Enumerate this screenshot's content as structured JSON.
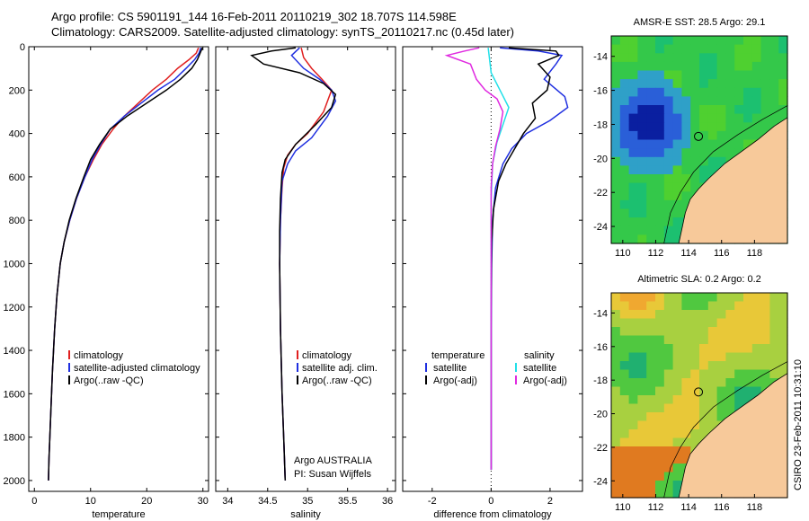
{
  "header": {
    "line1": "Argo profile: CS 5901191_144 16-Feb-2011 20110219_302 18.707S 114.598E",
    "line2": "Climatology: CARS2009. Satellite-adjusted climatology: synTS_20110217.nc (0.45d later)"
  },
  "side_stamp": "CSIRO 23-Feb-2011 10:31:10",
  "credit": {
    "line1": "Argo AUSTRALIA",
    "line2": "PI: Susan Wijffels"
  },
  "maps": {
    "sst_title": "AMSR-E SST: 28.5 Argo: 29.1",
    "sla_title": "Altimetric SLA: 0.2 Argo: 0.2"
  },
  "colors": {
    "climatology": "#e02020",
    "satellite": "#1f2fe0",
    "argo": "#000000",
    "sat_salinity": "#22e0e8",
    "argo_adj_salinity": "#e02ae0",
    "land": "#f7c99a"
  },
  "chart_data": [
    {
      "type": "line",
      "xlabel": "temperature",
      "ylabel": "",
      "xlim": [
        -1,
        31
      ],
      "ylim": [
        2050,
        0
      ],
      "xticks": [
        0,
        10,
        20,
        30
      ],
      "yticks": [
        0,
        200,
        400,
        600,
        800,
        1000,
        1200,
        1400,
        1600,
        1800,
        2000
      ],
      "legend": [
        "climatology",
        "satellite-adjusted climatology",
        "Argo(..raw -QC)"
      ],
      "series": [
        {
          "name": "climatology",
          "color": "#e02020",
          "points": [
            [
              29.2,
              5
            ],
            [
              28.8,
              30
            ],
            [
              27.5,
              60
            ],
            [
              25.5,
              100
            ],
            [
              23.5,
              150
            ],
            [
              21,
              200
            ],
            [
              18.5,
              260
            ],
            [
              16,
              320
            ],
            [
              14,
              380
            ],
            [
              12,
              450
            ],
            [
              10.5,
              520
            ],
            [
              9,
              600
            ],
            [
              7.5,
              700
            ],
            [
              6.3,
              800
            ],
            [
              5.3,
              900
            ],
            [
              4.6,
              1000
            ],
            [
              4,
              1150
            ],
            [
              3.6,
              1300
            ],
            [
              3.2,
              1500
            ],
            [
              2.9,
              1700
            ],
            [
              2.6,
              1900
            ],
            [
              2.5,
              2000
            ]
          ]
        },
        {
          "name": "satellite-adjusted climatology",
          "color": "#1f2fe0",
          "points": [
            [
              29.6,
              5
            ],
            [
              29.3,
              30
            ],
            [
              28.5,
              60
            ],
            [
              27,
              100
            ],
            [
              25,
              150
            ],
            [
              22,
              200
            ],
            [
              19,
              260
            ],
            [
              16,
              320
            ],
            [
              13.5,
              380
            ],
            [
              11.8,
              450
            ],
            [
              10.3,
              520
            ],
            [
              9,
              600
            ],
            [
              7.5,
              700
            ],
            [
              6.3,
              800
            ],
            [
              5.3,
              900
            ],
            [
              4.6,
              1000
            ],
            [
              4,
              1150
            ],
            [
              3.6,
              1300
            ],
            [
              3.2,
              1500
            ],
            [
              2.9,
              1700
            ],
            [
              2.6,
              1900
            ],
            [
              2.5,
              2000
            ]
          ]
        },
        {
          "name": "Argo(..raw -QC)",
          "color": "#000000",
          "points": [
            [
              29.9,
              5
            ],
            [
              29.5,
              30
            ],
            [
              29,
              60
            ],
            [
              28,
              100
            ],
            [
              26,
              150
            ],
            [
              23.5,
              200
            ],
            [
              20,
              260
            ],
            [
              16.5,
              320
            ],
            [
              13.5,
              380
            ],
            [
              11.6,
              450
            ],
            [
              10,
              520
            ],
            [
              8.8,
              600
            ],
            [
              7.4,
              700
            ],
            [
              6.2,
              800
            ],
            [
              5.3,
              900
            ],
            [
              4.6,
              1000
            ],
            [
              4,
              1150
            ],
            [
              3.6,
              1300
            ],
            [
              3.2,
              1500
            ],
            [
              2.9,
              1700
            ],
            [
              2.6,
              1900
            ],
            [
              2.5,
              2000
            ]
          ]
        }
      ]
    },
    {
      "type": "line",
      "xlabel": "salinity",
      "ylabel": "",
      "xlim": [
        33.85,
        36.1
      ],
      "ylim": [
        2050,
        0
      ],
      "xticks": [
        34,
        34.5,
        35,
        35.5,
        36
      ],
      "yticks": [
        0,
        200,
        400,
        600,
        800,
        1000,
        1200,
        1400,
        1600,
        1800,
        2000
      ],
      "legend": [
        "climatology",
        "satellite adj. clim.",
        "Argo(..raw -QC)"
      ],
      "series": [
        {
          "name": "climatology",
          "color": "#e02020",
          "points": [
            [
              34.92,
              5
            ],
            [
              34.95,
              50
            ],
            [
              35.05,
              100
            ],
            [
              35.18,
              150
            ],
            [
              35.3,
              200
            ],
            [
              35.2,
              300
            ],
            [
              35,
              400
            ],
            [
              34.85,
              450
            ],
            [
              34.75,
              500
            ],
            [
              34.7,
              560
            ],
            [
              34.68,
              650
            ],
            [
              34.66,
              800
            ],
            [
              34.65,
              1000
            ],
            [
              34.66,
              1300
            ],
            [
              34.68,
              1600
            ],
            [
              34.7,
              1800
            ],
            [
              34.72,
              2000
            ]
          ]
        },
        {
          "name": "satellite adj. clim.",
          "color": "#1f2fe0",
          "points": [
            [
              34.9,
              5
            ],
            [
              34.8,
              40
            ],
            [
              34.95,
              100
            ],
            [
              35.15,
              150
            ],
            [
              35.3,
              200
            ],
            [
              35.35,
              250
            ],
            [
              35.25,
              320
            ],
            [
              35.05,
              420
            ],
            [
              34.85,
              480
            ],
            [
              34.75,
              540
            ],
            [
              34.68,
              620
            ],
            [
              34.66,
              800
            ],
            [
              34.65,
              1000
            ],
            [
              34.66,
              1300
            ],
            [
              34.68,
              1600
            ],
            [
              34.7,
              1800
            ],
            [
              34.72,
              2000
            ]
          ]
        },
        {
          "name": "Argo(..raw -QC)",
          "color": "#000000",
          "points": [
            [
              34.85,
              5
            ],
            [
              34.55,
              20
            ],
            [
              34.3,
              40
            ],
            [
              34.45,
              80
            ],
            [
              34.9,
              120
            ],
            [
              35.2,
              170
            ],
            [
              35.35,
              220
            ],
            [
              35.3,
              280
            ],
            [
              35.1,
              360
            ],
            [
              34.85,
              450
            ],
            [
              34.72,
              520
            ],
            [
              34.68,
              580
            ],
            [
              34.66,
              700
            ],
            [
              34.65,
              850
            ],
            [
              34.65,
              1000
            ],
            [
              34.66,
              1300
            ],
            [
              34.68,
              1600
            ],
            [
              34.7,
              1800
            ],
            [
              34.72,
              2000
            ]
          ]
        }
      ]
    },
    {
      "type": "line",
      "xlabel": "difference from climatology",
      "ylabel": "",
      "xlim": [
        -3,
        3.1
      ],
      "ylim": [
        2050,
        0
      ],
      "xticks": [
        -2,
        0,
        2
      ],
      "yticks": [
        0,
        200,
        400,
        600,
        800,
        1000,
        1200,
        1400,
        1600,
        1800,
        2000
      ],
      "legend_headers": [
        "temperature",
        "salinity"
      ],
      "legend": [
        "satellite",
        "Argo(-adj)",
        "satellite",
        "Argo(-adj)"
      ],
      "series": [
        {
          "name": "satellite",
          "group": "temperature",
          "color": "#1f2fe0",
          "points": [
            [
              0.3,
              5
            ],
            [
              1.6,
              20
            ],
            [
              2.4,
              40
            ],
            [
              2.2,
              80
            ],
            [
              1.8,
              150
            ],
            [
              2.5,
              230
            ],
            [
              2.6,
              280
            ],
            [
              2,
              340
            ],
            [
              1.2,
              400
            ],
            [
              0.7,
              470
            ],
            [
              0.4,
              540
            ],
            [
              0.15,
              650
            ],
            [
              0.05,
              800
            ],
            [
              0.02,
              1000
            ],
            [
              0,
              1300
            ],
            [
              0,
              1600
            ],
            [
              0,
              1800
            ],
            [
              0,
              1950
            ]
          ]
        },
        {
          "name": "Argo(-adj)",
          "group": "temperature",
          "color": "#000000",
          "points": [
            [
              0.6,
              5
            ],
            [
              2.2,
              20
            ],
            [
              2.3,
              40
            ],
            [
              1.6,
              80
            ],
            [
              2,
              140
            ],
            [
              1.9,
              200
            ],
            [
              1.4,
              260
            ],
            [
              1.5,
              330
            ],
            [
              1.1,
              400
            ],
            [
              0.8,
              470
            ],
            [
              0.5,
              540
            ],
            [
              0.25,
              620
            ],
            [
              0.08,
              750
            ],
            [
              0.02,
              900
            ],
            [
              0,
              1200
            ],
            [
              0,
              1500
            ],
            [
              0,
              1800
            ],
            [
              0,
              1950
            ]
          ]
        },
        {
          "name": "satellite",
          "group": "salinity",
          "color": "#22e0e8",
          "points": [
            [
              -0.1,
              5
            ],
            [
              -0.05,
              60
            ],
            [
              0,
              120
            ],
            [
              0.3,
              200
            ],
            [
              0.6,
              280
            ],
            [
              0.4,
              360
            ],
            [
              0.2,
              440
            ],
            [
              0.05,
              540
            ],
            [
              0,
              700
            ],
            [
              0,
              1000
            ],
            [
              0,
              1400
            ],
            [
              0,
              1800
            ],
            [
              0,
              1950
            ]
          ]
        },
        {
          "name": "Argo(-adj)",
          "group": "salinity",
          "color": "#e02ae0",
          "points": [
            [
              -0.4,
              5
            ],
            [
              -0.9,
              20
            ],
            [
              -1.5,
              40
            ],
            [
              -0.7,
              80
            ],
            [
              -0.5,
              150
            ],
            [
              -0.2,
              200
            ],
            [
              0.2,
              240
            ],
            [
              0.4,
              300
            ],
            [
              0.3,
              380
            ],
            [
              0.15,
              460
            ],
            [
              0.05,
              540
            ],
            [
              0,
              650
            ],
            [
              0,
              900
            ],
            [
              0,
              1200
            ],
            [
              0,
              1500
            ],
            [
              0,
              1800
            ],
            [
              0,
              1950
            ]
          ]
        }
      ]
    }
  ],
  "map_axes": {
    "xticks": [
      110,
      112,
      114,
      116,
      118
    ],
    "yticks": [
      -14,
      -16,
      -18,
      -20,
      -22,
      -24
    ],
    "xlim": [
      109.3,
      120
    ],
    "ylim": [
      -25,
      -12.8
    ],
    "float_position": [
      114.598,
      -18.707
    ]
  }
}
